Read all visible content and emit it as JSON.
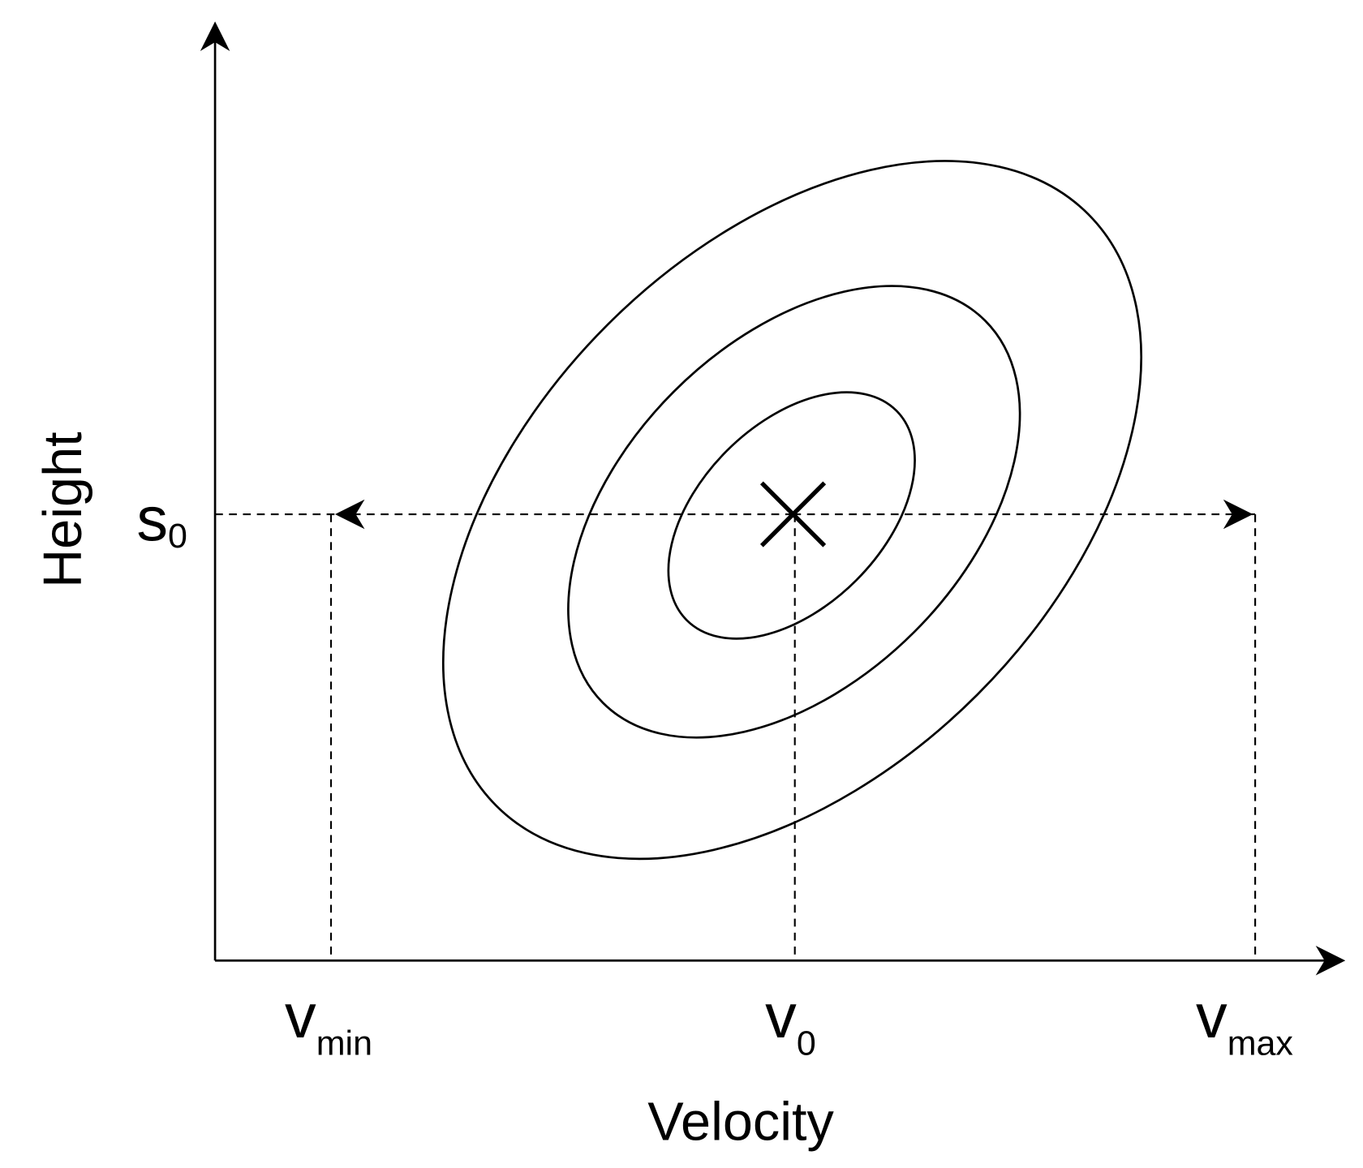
{
  "axes": {
    "y_label": "Height",
    "x_label": "Velocity"
  },
  "marks": {
    "height": {
      "main": "s",
      "sub": "0"
    },
    "velocity_min": {
      "main": "v",
      "sub": "min"
    },
    "velocity_center": {
      "main": "v",
      "sub": "0"
    },
    "velocity_max": {
      "main": "v",
      "sub": "max"
    }
  }
}
